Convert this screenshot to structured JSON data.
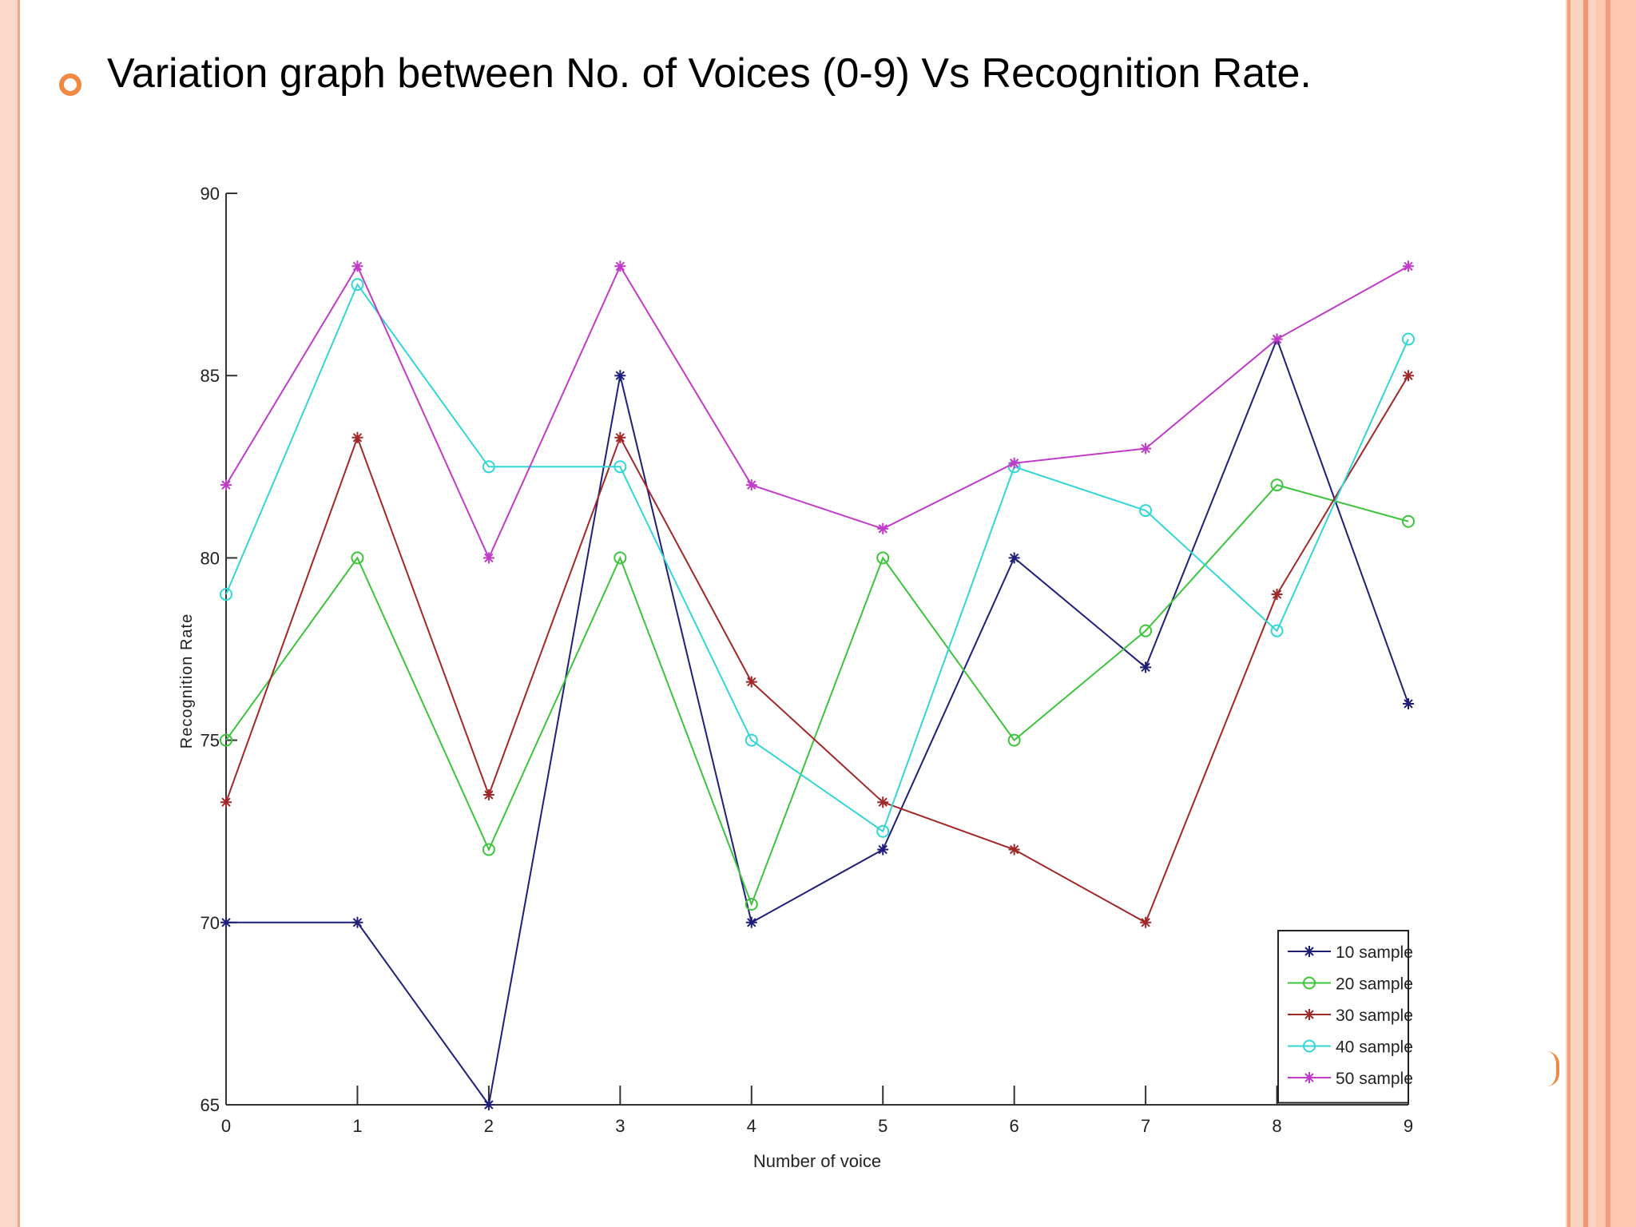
{
  "slide": {
    "title": "Variation graph between No. of Voices (0-9) Vs Recognition Rate."
  },
  "icons": {
    "bullet": "circle-bullet-icon",
    "accent": "#f0883f"
  },
  "chart_data": {
    "type": "line",
    "title": "",
    "xlabel": "Number of voice",
    "ylabel": "Recognition Rate",
    "x": [
      0,
      1,
      2,
      3,
      4,
      5,
      6,
      7,
      8,
      9
    ],
    "xlim": [
      0,
      9
    ],
    "ylim": [
      65,
      90
    ],
    "yticks": [
      65,
      70,
      75,
      80,
      85,
      90
    ],
    "grid": false,
    "legend_position": "bottom-right",
    "series": [
      {
        "name": "10 sample",
        "color": "#1f1f7a",
        "marker": "star",
        "values": [
          70,
          70,
          65,
          85,
          70,
          72,
          80,
          77,
          86,
          76
        ]
      },
      {
        "name": "20 sample",
        "color": "#3cc43c",
        "marker": "circle",
        "values": [
          75,
          80,
          72,
          80,
          70.5,
          80,
          75,
          78,
          82,
          81
        ]
      },
      {
        "name": "30 sample",
        "color": "#a02828",
        "marker": "star",
        "values": [
          73.3,
          83.3,
          73.5,
          83.3,
          76.6,
          73.3,
          72,
          70,
          79,
          85
        ]
      },
      {
        "name": "40 sample",
        "color": "#33d6d6",
        "marker": "circle",
        "values": [
          79,
          87.5,
          82.5,
          82.5,
          75,
          72.5,
          82.5,
          81.3,
          78,
          86
        ]
      },
      {
        "name": "50 sample",
        "color": "#c03cc8",
        "marker": "star",
        "values": [
          82,
          88,
          80,
          88,
          82,
          80.8,
          82.6,
          83,
          86,
          88
        ]
      }
    ]
  }
}
